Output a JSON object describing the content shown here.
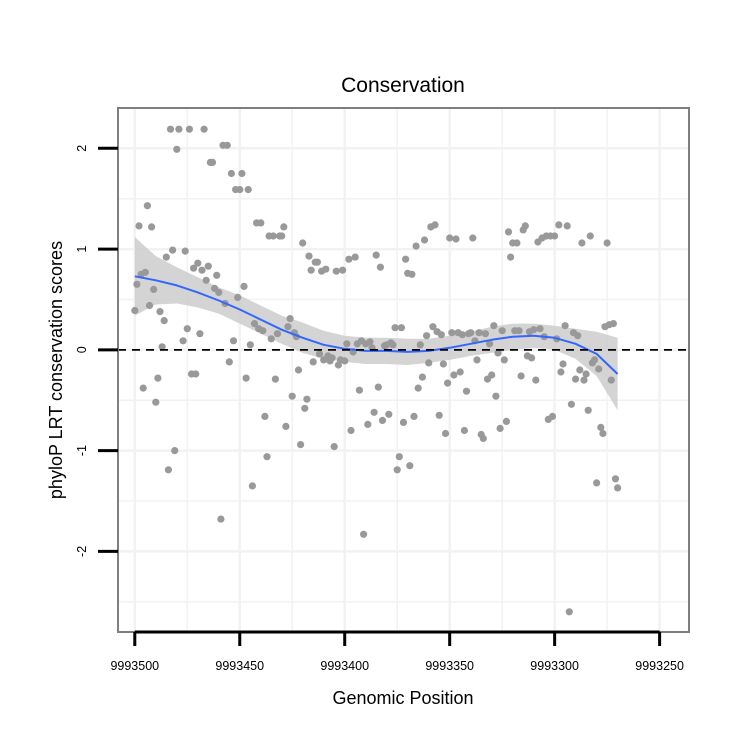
{
  "chart_data": {
    "type": "scatter",
    "title": "Conservation",
    "xlabel": "Genomic Position",
    "ylabel": "phyloP LRT conservation scores",
    "xlim": [
      9993508,
      9993236
    ],
    "ylim": [
      -2.8,
      2.4
    ],
    "x_reversed": true,
    "x_ticks": [
      9993500,
      9993450,
      9993400,
      9993350,
      9993300,
      9993250
    ],
    "x_tick_labels": [
      "9993500",
      "9993450",
      "9993400",
      "9993350",
      "9993300",
      "9993250"
    ],
    "y_ticks": [
      -2,
      -1,
      0,
      1,
      2
    ],
    "y_tick_labels": [
      "-2",
      "-1",
      "0",
      "1",
      "2"
    ],
    "reference_line": {
      "y": 0,
      "style": "dashed"
    },
    "grid": true,
    "colors": {
      "points": "#999999",
      "smooth_line": "#3366FF",
      "ribbon": "#cccccc",
      "panel_border": "#7f7f7f",
      "grid": "#f2f2f2"
    },
    "series": [
      {
        "name": "phyloP scores",
        "type": "scatter",
        "points": [
          [
            9993500,
            0.39
          ],
          [
            9993499,
            0.65
          ],
          [
            9993498,
            1.23
          ],
          [
            9993497,
            0.75
          ],
          [
            9993496,
            -0.38
          ],
          [
            9993495,
            0.77
          ],
          [
            9993494,
            1.43
          ],
          [
            9993493,
            0.44
          ],
          [
            9993492,
            1.22
          ],
          [
            9993491,
            0.6
          ],
          [
            9993490,
            -0.52
          ],
          [
            9993489,
            -0.28
          ],
          [
            9993488,
            0.38
          ],
          [
            9993487,
            0.03
          ],
          [
            9993486,
            0.29
          ],
          [
            9993485,
            0.92
          ],
          [
            9993484,
            -1.19
          ],
          [
            9993483,
            2.19
          ],
          [
            9993482,
            0.99
          ],
          [
            9993481,
            -1.0
          ],
          [
            9993480,
            1.99
          ],
          [
            9993479,
            2.19
          ],
          [
            9993477,
            0.09
          ],
          [
            9993476,
            0.98
          ],
          [
            9993475,
            0.21
          ],
          [
            9993474,
            2.19
          ],
          [
            9993473,
            -0.24
          ],
          [
            9993472,
            0.81
          ],
          [
            9993471,
            -0.24
          ],
          [
            9993470,
            0.86
          ],
          [
            9993469,
            0.16
          ],
          [
            9993468,
            0.79
          ],
          [
            9993467,
            2.19
          ],
          [
            9993466,
            0.69
          ],
          [
            9993465,
            0.83
          ],
          [
            9993464,
            1.86
          ],
          [
            9993463,
            1.86
          ],
          [
            9993462,
            0.61
          ],
          [
            9993461,
            0.74
          ],
          [
            9993460,
            0.57
          ],
          [
            9993459,
            -1.68
          ],
          [
            9993458,
            2.03
          ],
          [
            9993457,
            0.46
          ],
          [
            9993456,
            2.03
          ],
          [
            9993455,
            -0.12
          ],
          [
            9993454,
            1.75
          ],
          [
            9993453,
            0.09
          ],
          [
            9993452,
            1.59
          ],
          [
            9993451,
            0.52
          ],
          [
            9993450,
            1.59
          ],
          [
            9993449,
            1.75
          ],
          [
            9993448,
            0.63
          ],
          [
            9993447,
            -0.28
          ],
          [
            9993446,
            1.59
          ],
          [
            9993445,
            0.05
          ],
          [
            9993444,
            -1.35
          ],
          [
            9993443,
            0.26
          ],
          [
            9993442,
            1.26
          ],
          [
            9993441,
            0.21
          ],
          [
            9993440,
            1.26
          ],
          [
            9993439,
            0.19
          ],
          [
            9993438,
            -0.66
          ],
          [
            9993437,
            -1.06
          ],
          [
            9993436,
            1.13
          ],
          [
            9993435,
            0.11
          ],
          [
            9993434,
            1.13
          ],
          [
            9993433,
            -0.29
          ],
          [
            9993432,
            0.16
          ],
          [
            9993431,
            1.13
          ],
          [
            9993430,
            1.13
          ],
          [
            9993429,
            1.22
          ],
          [
            9993428,
            -0.76
          ],
          [
            9993427,
            0.23
          ],
          [
            9993426,
            0.31
          ],
          [
            9993425,
            -0.46
          ],
          [
            9993424,
            0.17
          ],
          [
            9993423,
            0.13
          ],
          [
            9993422,
            -0.2
          ],
          [
            9993421,
            -0.94
          ],
          [
            9993420,
            1.06
          ],
          [
            9993419,
            -0.58
          ],
          [
            9993418,
            -0.49
          ],
          [
            9993417,
            0.93
          ],
          [
            9993416,
            0.79
          ],
          [
            9993415,
            -0.12
          ],
          [
            9993414,
            0.87
          ],
          [
            9993413,
            0.87
          ],
          [
            9993412,
            -0.04
          ],
          [
            9993411,
            0.78
          ],
          [
            9993410,
            -0.1
          ],
          [
            9993409,
            0.8
          ],
          [
            9993408,
            -0.06
          ],
          [
            9993407,
            -0.11
          ],
          [
            9993406,
            -0.08
          ],
          [
            9993405,
            -0.96
          ],
          [
            9993404,
            0.78
          ],
          [
            9993403,
            -0.15
          ],
          [
            9993402,
            -0.1
          ],
          [
            9993401,
            0.79
          ],
          [
            9993400,
            -0.11
          ],
          [
            9993399,
            0.06
          ],
          [
            9993398,
            0.9
          ],
          [
            9993397,
            -0.8
          ],
          [
            9993396,
            -0.02
          ],
          [
            9993395,
            0.92
          ],
          [
            9993394,
            0.06
          ],
          [
            9993393,
            -0.4
          ],
          [
            9993392,
            0.09
          ],
          [
            9993391,
            -1.83
          ],
          [
            9993390,
            0.06
          ],
          [
            9993389,
            -0.74
          ],
          [
            9993388,
            0.08
          ],
          [
            9993387,
            0.02
          ],
          [
            9993386,
            -0.62
          ],
          [
            9993385,
            0.94
          ],
          [
            9993384,
            -0.37
          ],
          [
            9993383,
            0.82
          ],
          [
            9993382,
            -0.7
          ],
          [
            9993381,
            0.04
          ],
          [
            9993380,
            0.05
          ],
          [
            9993379,
            -0.64
          ],
          [
            9993378,
            0.07
          ],
          [
            9993377,
            0.05
          ],
          [
            9993376,
            0.22
          ],
          [
            9993375,
            -1.19
          ],
          [
            9993374,
            -1.06
          ],
          [
            9993373,
            0.22
          ],
          [
            9993372,
            -0.72
          ],
          [
            9993371,
            0.9
          ],
          [
            9993370,
            0.76
          ],
          [
            9993369,
            -1.15
          ],
          [
            9993368,
            0.75
          ],
          [
            9993367,
            -0.66
          ],
          [
            9993366,
            1.03
          ],
          [
            9993365,
            -0.38
          ],
          [
            9993364,
            0.05
          ],
          [
            9993363,
            -0.27
          ],
          [
            9993362,
            1.09
          ],
          [
            9993361,
            0.14
          ],
          [
            9993360,
            -0.13
          ],
          [
            9993359,
            1.22
          ],
          [
            9993358,
            0.23
          ],
          [
            9993357,
            1.24
          ],
          [
            9993356,
            0.18
          ],
          [
            9993355,
            -0.65
          ],
          [
            9993354,
            0.15
          ],
          [
            9993353,
            -0.14
          ],
          [
            9993352,
            -0.83
          ],
          [
            9993351,
            -0.33
          ],
          [
            9993350,
            1.11
          ],
          [
            9993349,
            0.17
          ],
          [
            9993348,
            -0.25
          ],
          [
            9993347,
            1.1
          ],
          [
            9993346,
            0.17
          ],
          [
            9993345,
            -0.22
          ],
          [
            9993344,
            0.15
          ],
          [
            9993343,
            -0.8
          ],
          [
            9993342,
            -0.41
          ],
          [
            9993341,
            0.16
          ],
          [
            9993340,
            0.17
          ],
          [
            9993339,
            1.11
          ],
          [
            9993338,
            0.09
          ],
          [
            9993337,
            -0.1
          ],
          [
            9993336,
            0.17
          ],
          [
            9993335,
            -0.84
          ],
          [
            9993334,
            -0.88
          ],
          [
            9993333,
            0.16
          ],
          [
            9993332,
            -0.29
          ],
          [
            9993331,
            0.06
          ],
          [
            9993330,
            -0.25
          ],
          [
            9993329,
            0.24
          ],
          [
            9993328,
            -0.46
          ],
          [
            9993327,
            -0.03
          ],
          [
            9993326,
            -0.78
          ],
          [
            9993325,
            0.19
          ],
          [
            9993324,
            -0.1
          ],
          [
            9993323,
            -0.71
          ],
          [
            9993322,
            1.17
          ],
          [
            9993321,
            0.92
          ],
          [
            9993320,
            1.06
          ],
          [
            9993319,
            0.19
          ],
          [
            9993318,
            1.06
          ],
          [
            9993317,
            0.19
          ],
          [
            9993316,
            -0.26
          ],
          [
            9993315,
            1.19
          ],
          [
            9993314,
            1.23
          ],
          [
            9993313,
            -0.06
          ],
          [
            9993312,
            0.18
          ],
          [
            9993311,
            -0.08
          ],
          [
            9993310,
            0.2
          ],
          [
            9993309,
            -0.3
          ],
          [
            9993308,
            1.07
          ],
          [
            9993307,
            0.21
          ],
          [
            9993306,
            1.11
          ],
          [
            9993305,
            0.13
          ],
          [
            9993304,
            1.13
          ],
          [
            9993303,
            -0.69
          ],
          [
            9993302,
            1.13
          ],
          [
            9993301,
            -0.66
          ],
          [
            9993300,
            1.13
          ],
          [
            9993299,
            0.11
          ],
          [
            9993298,
            1.24
          ],
          [
            9993297,
            -0.22
          ],
          [
            9993296,
            -0.14
          ],
          [
            9993295,
            0.24
          ],
          [
            9993294,
            1.23
          ],
          [
            9993293,
            -2.6
          ],
          [
            9993292,
            -0.54
          ],
          [
            9993291,
            0.17
          ],
          [
            9993290,
            -0.29
          ],
          [
            9993289,
            0.14
          ],
          [
            9993288,
            -0.2
          ],
          [
            9993287,
            1.06
          ],
          [
            9993286,
            -0.3
          ],
          [
            9993285,
            -0.24
          ],
          [
            9993284,
            -0.6
          ],
          [
            9993283,
            1.13
          ],
          [
            9993282,
            -0.13
          ],
          [
            9993281,
            -0.1
          ],
          [
            9993280,
            -1.32
          ],
          [
            9993279,
            -0.19
          ],
          [
            9993278,
            -0.77
          ],
          [
            9993277,
            -0.83
          ],
          [
            9993276,
            0.23
          ],
          [
            9993275,
            1.06
          ],
          [
            9993274,
            0.25
          ],
          [
            9993273,
            -0.3
          ],
          [
            9993272,
            0.26
          ],
          [
            9993271,
            -1.28
          ],
          [
            9993270,
            -1.37
          ]
        ]
      },
      {
        "name": "smoothed fit",
        "type": "line",
        "points": [
          [
            9993500,
            0.73
          ],
          [
            9993490,
            0.69
          ],
          [
            9993480,
            0.64
          ],
          [
            9993470,
            0.57
          ],
          [
            9993460,
            0.49
          ],
          [
            9993450,
            0.4
          ],
          [
            9993440,
            0.3
          ],
          [
            9993430,
            0.2
          ],
          [
            9993420,
            0.12
          ],
          [
            9993410,
            0.05
          ],
          [
            9993400,
            0.01
          ],
          [
            9993390,
            -0.01
          ],
          [
            9993380,
            -0.01
          ],
          [
            9993370,
            -0.02
          ],
          [
            9993360,
            -0.01
          ],
          [
            9993350,
            0.02
          ],
          [
            9993340,
            0.06
          ],
          [
            9993330,
            0.1
          ],
          [
            9993320,
            0.13
          ],
          [
            9993310,
            0.14
          ],
          [
            9993300,
            0.12
          ],
          [
            9993290,
            0.06
          ],
          [
            9993280,
            -0.04
          ],
          [
            9993270,
            -0.24
          ]
        ]
      },
      {
        "name": "confidence band",
        "type": "area",
        "points": [
          [
            9993500,
            0.34,
            1.12
          ],
          [
            9993490,
            0.45,
            0.93
          ],
          [
            9993480,
            0.46,
            0.82
          ],
          [
            9993470,
            0.42,
            0.72
          ],
          [
            9993460,
            0.36,
            0.62
          ],
          [
            9993450,
            0.26,
            0.54
          ],
          [
            9993440,
            0.16,
            0.44
          ],
          [
            9993430,
            0.06,
            0.34
          ],
          [
            9993420,
            -0.03,
            0.27
          ],
          [
            9993410,
            -0.09,
            0.19
          ],
          [
            9993400,
            -0.12,
            0.14
          ],
          [
            9993390,
            -0.14,
            0.12
          ],
          [
            9993380,
            -0.14,
            0.12
          ],
          [
            9993370,
            -0.15,
            0.11
          ],
          [
            9993360,
            -0.13,
            0.11
          ],
          [
            9993350,
            -0.1,
            0.14
          ],
          [
            9993340,
            -0.06,
            0.18
          ],
          [
            9993330,
            -0.03,
            0.23
          ],
          [
            9993320,
            0.0,
            0.26
          ],
          [
            9993310,
            0.02,
            0.26
          ],
          [
            9993300,
            0.0,
            0.24
          ],
          [
            9993290,
            -0.09,
            0.21
          ],
          [
            9993280,
            -0.26,
            0.18
          ],
          [
            9993270,
            -0.6,
            0.12
          ]
        ]
      }
    ]
  }
}
